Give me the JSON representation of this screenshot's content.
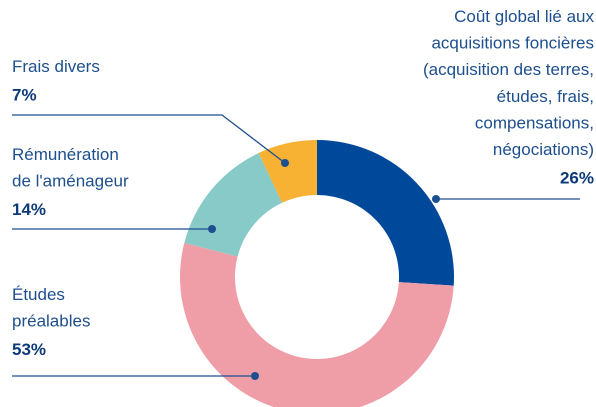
{
  "chart_data": {
    "type": "donut",
    "categories": [
      "Coût global lié aux\nacquisitions foncières\n(acquisition des terres,\nétudes, frais,\ncompensations,\nnégociations)",
      "Études\npréalables",
      "Rémunération\nde l'aménageur",
      "Frais divers"
    ],
    "values": [
      26,
      53,
      14,
      7
    ],
    "value_labels": [
      "26%",
      "53%",
      "14%",
      "7%"
    ],
    "colors": [
      "#00489a",
      "#ef9ea7",
      "#88cac7",
      "#f7b133"
    ]
  }
}
